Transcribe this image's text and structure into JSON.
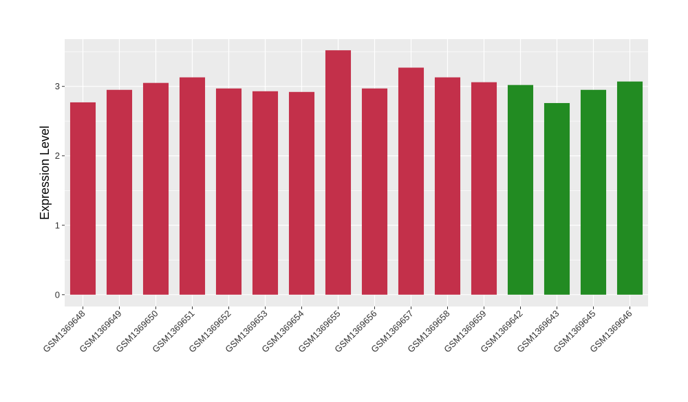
{
  "chart_data": {
    "type": "bar",
    "title": "",
    "xlabel": "",
    "ylabel": "Expression Level",
    "ylim": [
      -0.17,
      3.68
    ],
    "yticks": [
      0,
      1,
      2,
      3
    ],
    "grid": true,
    "legend": "none",
    "categories": [
      "GSM1369648",
      "GSM1369649",
      "GSM1369650",
      "GSM1369651",
      "GSM1369652",
      "GSM1369653",
      "GSM1369654",
      "GSM1369655",
      "GSM1369656",
      "GSM1369657",
      "GSM1369658",
      "GSM1369659",
      "GSM1369642",
      "GSM1369643",
      "GSM1369645",
      "GSM1369646"
    ],
    "values": [
      2.77,
      2.95,
      3.05,
      3.13,
      2.97,
      2.93,
      2.92,
      3.52,
      2.97,
      3.27,
      3.13,
      3.06,
      3.02,
      2.76,
      2.95,
      3.07
    ],
    "groups": [
      "a",
      "a",
      "a",
      "a",
      "a",
      "a",
      "a",
      "a",
      "a",
      "a",
      "a",
      "a",
      "b",
      "b",
      "b",
      "b"
    ],
    "group_colors": {
      "a": "#C3304A",
      "b": "#228B22"
    },
    "panel_background": "#EBEBEB",
    "grid_color": "#FFFFFF"
  }
}
